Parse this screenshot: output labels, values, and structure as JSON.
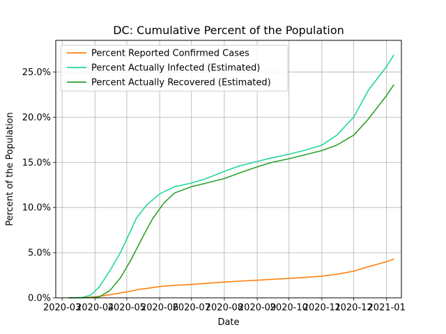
{
  "chart_data": {
    "type": "line",
    "title": "DC: Cumulative Percent of the Population",
    "xlabel": "Date",
    "ylabel": "Percent of the Population",
    "x_ticks": [
      "2020-03",
      "2020-04",
      "2020-05",
      "2020-06",
      "2020-07",
      "2020-08",
      "2020-09",
      "2020-10",
      "2020-11",
      "2020-12",
      "2021-01"
    ],
    "xlim": [
      "2020-02-24",
      "2021-01-15"
    ],
    "ylim": [
      0,
      28.5
    ],
    "y_ticks": [
      "0.0%",
      "5.0%",
      "10.0%",
      "15.0%",
      "20.0%",
      "25.0%"
    ],
    "grid": true,
    "legend_position": "upper-left",
    "series": [
      {
        "name": "Percent Reported Confirmed Cases",
        "color": "#ff7f0e",
        "points": [
          [
            "2020-03-07",
            0.0
          ],
          [
            "2020-03-20",
            0.02
          ],
          [
            "2020-04-01",
            0.1
          ],
          [
            "2020-04-10",
            0.25
          ],
          [
            "2020-04-20",
            0.45
          ],
          [
            "2020-05-01",
            0.65
          ],
          [
            "2020-05-10",
            0.88
          ],
          [
            "2020-05-20",
            1.05
          ],
          [
            "2020-06-01",
            1.25
          ],
          [
            "2020-06-15",
            1.38
          ],
          [
            "2020-07-01",
            1.48
          ],
          [
            "2020-07-15",
            1.6
          ],
          [
            "2020-08-01",
            1.75
          ],
          [
            "2020-08-15",
            1.85
          ],
          [
            "2020-09-01",
            1.95
          ],
          [
            "2020-09-15",
            2.05
          ],
          [
            "2020-10-01",
            2.15
          ],
          [
            "2020-10-15",
            2.25
          ],
          [
            "2020-11-01",
            2.4
          ],
          [
            "2020-11-15",
            2.6
          ],
          [
            "2020-12-01",
            2.95
          ],
          [
            "2020-12-15",
            3.45
          ],
          [
            "2021-01-01",
            4.0
          ],
          [
            "2021-01-08",
            4.3
          ]
        ]
      },
      {
        "name": "Percent Actually Infected (Estimated)",
        "color": "#1fd69b",
        "points": [
          [
            "2020-03-07",
            0.0
          ],
          [
            "2020-03-20",
            0.05
          ],
          [
            "2020-03-28",
            0.3
          ],
          [
            "2020-04-05",
            1.2
          ],
          [
            "2020-04-15",
            3.0
          ],
          [
            "2020-04-25",
            5.0
          ],
          [
            "2020-05-01",
            6.5
          ],
          [
            "2020-05-10",
            8.8
          ],
          [
            "2020-05-20",
            10.3
          ],
          [
            "2020-06-01",
            11.5
          ],
          [
            "2020-06-15",
            12.3
          ],
          [
            "2020-07-01",
            12.7
          ],
          [
            "2020-07-15",
            13.2
          ],
          [
            "2020-08-01",
            14.0
          ],
          [
            "2020-08-15",
            14.6
          ],
          [
            "2020-09-01",
            15.1
          ],
          [
            "2020-09-15",
            15.5
          ],
          [
            "2020-10-01",
            15.9
          ],
          [
            "2020-10-15",
            16.3
          ],
          [
            "2020-11-01",
            16.9
          ],
          [
            "2020-11-15",
            18.0
          ],
          [
            "2020-12-01",
            20.0
          ],
          [
            "2020-12-15",
            23.0
          ],
          [
            "2021-01-01",
            25.6
          ],
          [
            "2021-01-08",
            26.9
          ]
        ]
      },
      {
        "name": "Percent Actually Recovered (Estimated)",
        "color": "#2ca02c",
        "points": [
          [
            "2020-03-07",
            0.0
          ],
          [
            "2020-03-25",
            0.0
          ],
          [
            "2020-04-05",
            0.1
          ],
          [
            "2020-04-15",
            0.8
          ],
          [
            "2020-04-25",
            2.2
          ],
          [
            "2020-05-05",
            4.2
          ],
          [
            "2020-05-15",
            6.5
          ],
          [
            "2020-05-25",
            8.7
          ],
          [
            "2020-06-05",
            10.5
          ],
          [
            "2020-06-15",
            11.6
          ],
          [
            "2020-07-01",
            12.3
          ],
          [
            "2020-07-15",
            12.7
          ],
          [
            "2020-08-01",
            13.2
          ],
          [
            "2020-08-15",
            13.8
          ],
          [
            "2020-09-01",
            14.5
          ],
          [
            "2020-09-15",
            15.0
          ],
          [
            "2020-10-01",
            15.4
          ],
          [
            "2020-10-15",
            15.8
          ],
          [
            "2020-11-01",
            16.3
          ],
          [
            "2020-11-15",
            16.9
          ],
          [
            "2020-12-01",
            18.0
          ],
          [
            "2020-12-15",
            19.8
          ],
          [
            "2021-01-01",
            22.4
          ],
          [
            "2021-01-08",
            23.6
          ]
        ]
      }
    ]
  }
}
